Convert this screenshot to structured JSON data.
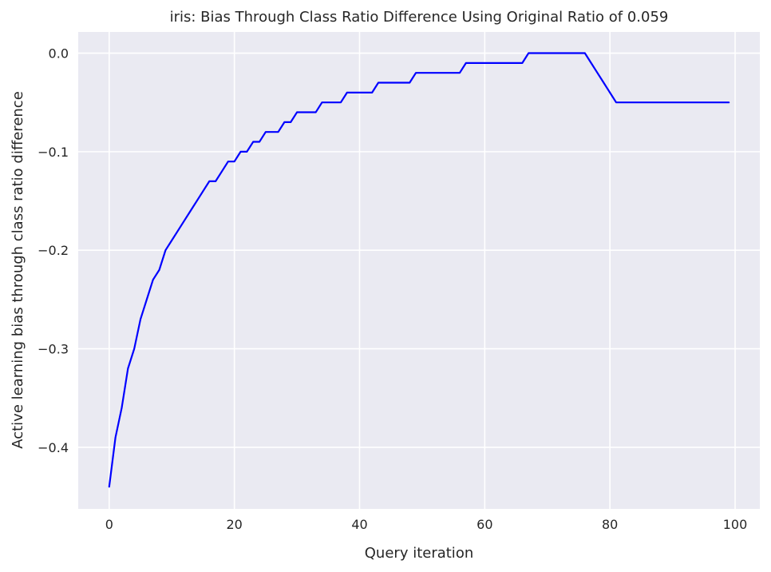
{
  "chart_data": {
    "type": "line",
    "title": "iris: Bias Through Class Ratio Difference Using Original Ratio of 0.059",
    "xlabel": "Query iteration",
    "ylabel": "Active learning bias through class ratio difference",
    "xlim": [
      -4.95,
      103.95
    ],
    "ylim": [
      -0.4625,
      0.0215
    ],
    "xticks": [
      0,
      20,
      40,
      60,
      80,
      100
    ],
    "xtick_labels": [
      "0",
      "20",
      "40",
      "60",
      "80",
      "100"
    ],
    "yticks": [
      0.0,
      -0.1,
      -0.2,
      -0.3,
      -0.4
    ],
    "ytick_labels": [
      "0.0",
      "−0.1",
      "−0.2",
      "−0.3",
      "−0.4"
    ],
    "grid": true,
    "legend": false,
    "colors": {
      "background": "#EAEAF2",
      "grid": "#FFFFFF",
      "line": "#0000FF"
    },
    "series": [
      {
        "color": "#0000FF",
        "x": [
          0,
          1,
          2,
          3,
          4,
          5,
          6,
          7,
          8,
          9,
          10,
          11,
          12,
          13,
          14,
          15,
          16,
          17,
          18,
          19,
          20,
          21,
          22,
          23,
          24,
          25,
          26,
          27,
          28,
          29,
          30,
          31,
          32,
          33,
          34,
          35,
          36,
          37,
          38,
          39,
          40,
          41,
          42,
          43,
          44,
          45,
          46,
          47,
          48,
          49,
          50,
          51,
          52,
          53,
          54,
          55,
          56,
          57,
          58,
          59,
          60,
          61,
          62,
          63,
          64,
          65,
          66,
          67,
          68,
          69,
          70,
          71,
          72,
          73,
          74,
          75,
          76,
          77,
          78,
          79,
          80,
          81,
          82,
          83,
          84,
          85,
          86,
          87,
          88,
          89,
          90,
          91,
          92,
          93,
          94,
          95,
          96,
          97,
          98,
          99
        ],
        "y": [
          -0.44,
          -0.39,
          -0.36,
          -0.32,
          -0.3,
          -0.27,
          -0.25,
          -0.23,
          -0.22,
          -0.2,
          -0.19,
          -0.18,
          -0.17,
          -0.16,
          -0.15,
          -0.14,
          -0.13,
          -0.13,
          -0.12,
          -0.11,
          -0.11,
          -0.1,
          -0.1,
          -0.09,
          -0.09,
          -0.08,
          -0.08,
          -0.08,
          -0.07,
          -0.07,
          -0.06,
          -0.06,
          -0.06,
          -0.06,
          -0.05,
          -0.05,
          -0.05,
          -0.05,
          -0.04,
          -0.04,
          -0.04,
          -0.04,
          -0.04,
          -0.03,
          -0.03,
          -0.03,
          -0.03,
          -0.03,
          -0.03,
          -0.02,
          -0.02,
          -0.02,
          -0.02,
          -0.02,
          -0.02,
          -0.02,
          -0.02,
          -0.01,
          -0.01,
          -0.01,
          -0.01,
          -0.01,
          -0.01,
          -0.01,
          -0.01,
          -0.01,
          -0.01,
          0.0,
          0.0,
          0.0,
          0.0,
          0.0,
          0.0,
          0.0,
          0.0,
          0.0,
          0.0,
          -0.01,
          -0.02,
          -0.03,
          -0.04,
          -0.05,
          -0.05,
          -0.05,
          -0.05,
          -0.05,
          -0.05,
          -0.05,
          -0.05,
          -0.05,
          -0.05,
          -0.05,
          -0.05,
          -0.05,
          -0.05,
          -0.05,
          -0.05,
          -0.05,
          -0.05,
          -0.05
        ]
      }
    ]
  }
}
